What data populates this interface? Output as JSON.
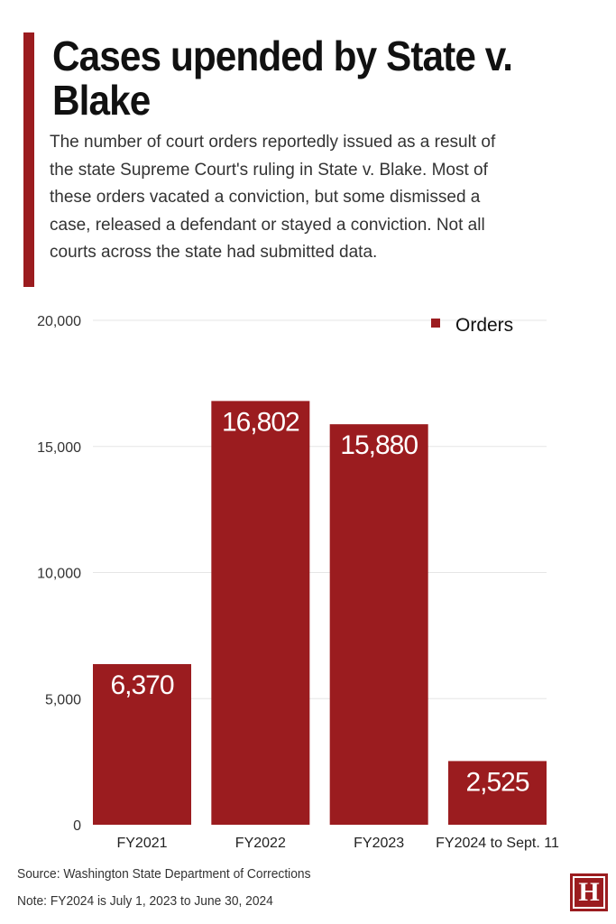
{
  "header": {
    "title": "Cases upended by State v. Blake",
    "subtitle": "The number of court orders reportedly issued as a result of the state Supreme Court's ruling in State v. Blake. Most of these orders vacated a conviction, but some dismissed a case, released a defendant or stayed a conviction. Not all courts across the state had submitted data."
  },
  "chart_data": {
    "type": "bar",
    "categories": [
      "FY2021",
      "FY2022",
      "FY2023",
      "FY2024 to Sept. 11"
    ],
    "series": [
      {
        "name": "Orders",
        "values": [
          6370,
          16802,
          15880,
          2525
        ],
        "labels": [
          "6,370",
          "16,802",
          "15,880",
          "2,525"
        ]
      }
    ],
    "ylim": [
      0,
      20000
    ],
    "yticks": [
      {
        "value": 0,
        "label": "0"
      },
      {
        "value": 5000,
        "label": "5,000"
      },
      {
        "value": 10000,
        "label": "10,000"
      },
      {
        "value": 15000,
        "label": "15,000"
      },
      {
        "value": 20000,
        "label": "20,000"
      }
    ],
    "xlabel": "",
    "ylabel": "",
    "grid": true,
    "legend_position": "top-right",
    "bar_color": "#9b1c1f"
  },
  "footer": {
    "source": "Source: Washington State Department of Corrections",
    "note": "Note: FY2024 is July 1, 2023 to June 30, 2024"
  },
  "logo": {
    "letter": "H",
    "color": "#9b1c1f"
  }
}
